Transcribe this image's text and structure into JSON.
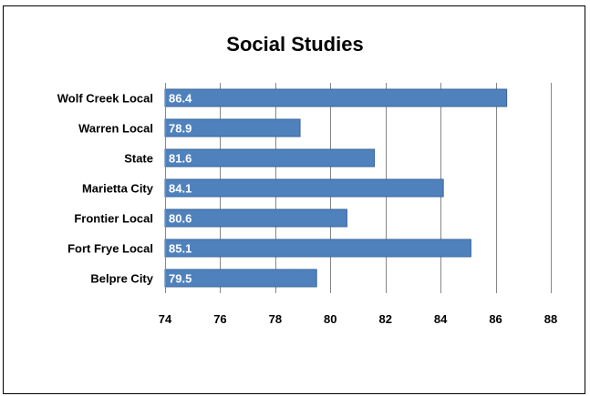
{
  "chart_data": {
    "type": "bar",
    "orientation": "horizontal",
    "title": "Social Studies",
    "categories": [
      "Wolf Creek Local",
      "Warren Local",
      "State",
      "Marietta City",
      "Frontier Local",
      "Fort Frye Local",
      "Belpre City"
    ],
    "values": [
      86.4,
      78.9,
      81.6,
      84.1,
      80.6,
      85.1,
      79.5
    ],
    "data_labels": [
      "86.4",
      "78.9",
      "81.6",
      "84.1",
      "80.6",
      "85.1",
      "79.5"
    ],
    "xlim": [
      74,
      88
    ],
    "x_ticks": [
      74,
      76,
      78,
      80,
      82,
      84,
      86,
      88
    ],
    "grid": "vertical",
    "legend": "none",
    "bar_color": "#4F81BD",
    "bar_edge_color": "#3A6597"
  }
}
